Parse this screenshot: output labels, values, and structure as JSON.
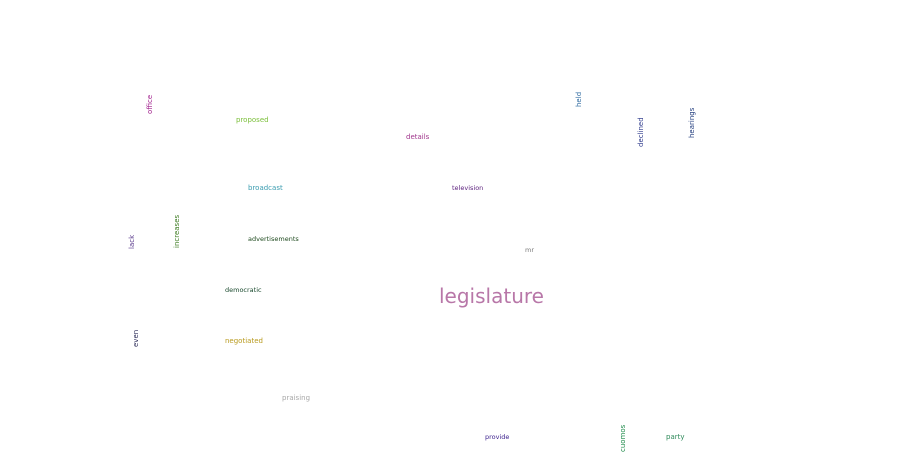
{
  "words": {
    "legislature": {
      "text": "legislature",
      "color": "#b877a8",
      "orientation": "horizontal"
    },
    "proposed": {
      "text": "proposed",
      "color": "#7bbf3a",
      "orientation": "horizontal"
    },
    "details": {
      "text": "details",
      "color": "#a0368c",
      "orientation": "horizontal"
    },
    "broadcast": {
      "text": "broadcast",
      "color": "#3a9cb0",
      "orientation": "horizontal"
    },
    "television": {
      "text": "television",
      "color": "#5a1e7c",
      "orientation": "horizontal"
    },
    "advertisements": {
      "text": "advertisements",
      "color": "#1e4a1e",
      "orientation": "horizontal"
    },
    "mr": {
      "text": "mr",
      "color": "#7a7a7a",
      "orientation": "horizontal"
    },
    "democratic": {
      "text": "democratic",
      "color": "#1a4a2e",
      "orientation": "horizontal"
    },
    "negotiated": {
      "text": "negotiated",
      "color": "#b89a1e",
      "orientation": "horizontal"
    },
    "praising": {
      "text": "praising",
      "color": "#a8a8a8",
      "orientation": "horizontal"
    },
    "provide": {
      "text": "provide",
      "color": "#3a1e8c",
      "orientation": "horizontal"
    },
    "party": {
      "text": "party",
      "color": "#2e8a5a",
      "orientation": "horizontal"
    },
    "office": {
      "text": "office",
      "color": "#a01e8c",
      "orientation": "vertical"
    },
    "held": {
      "text": "held",
      "color": "#2e6aa0",
      "orientation": "vertical"
    },
    "declined": {
      "text": "declined",
      "color": "#2e3a8c",
      "orientation": "vertical"
    },
    "hearings": {
      "text": "hearings",
      "color": "#1e3a7c",
      "orientation": "vertical"
    },
    "increases": {
      "text": "increases",
      "color": "#3a7a1e",
      "orientation": "vertical"
    },
    "lack": {
      "text": "lack",
      "color": "#5a3a8c",
      "orientation": "vertical"
    },
    "even": {
      "text": "even",
      "color": "#2e2e5a",
      "orientation": "vertical"
    },
    "cuomos": {
      "text": "cuomos",
      "color": "#1e8a4a",
      "orientation": "vertical"
    }
  }
}
